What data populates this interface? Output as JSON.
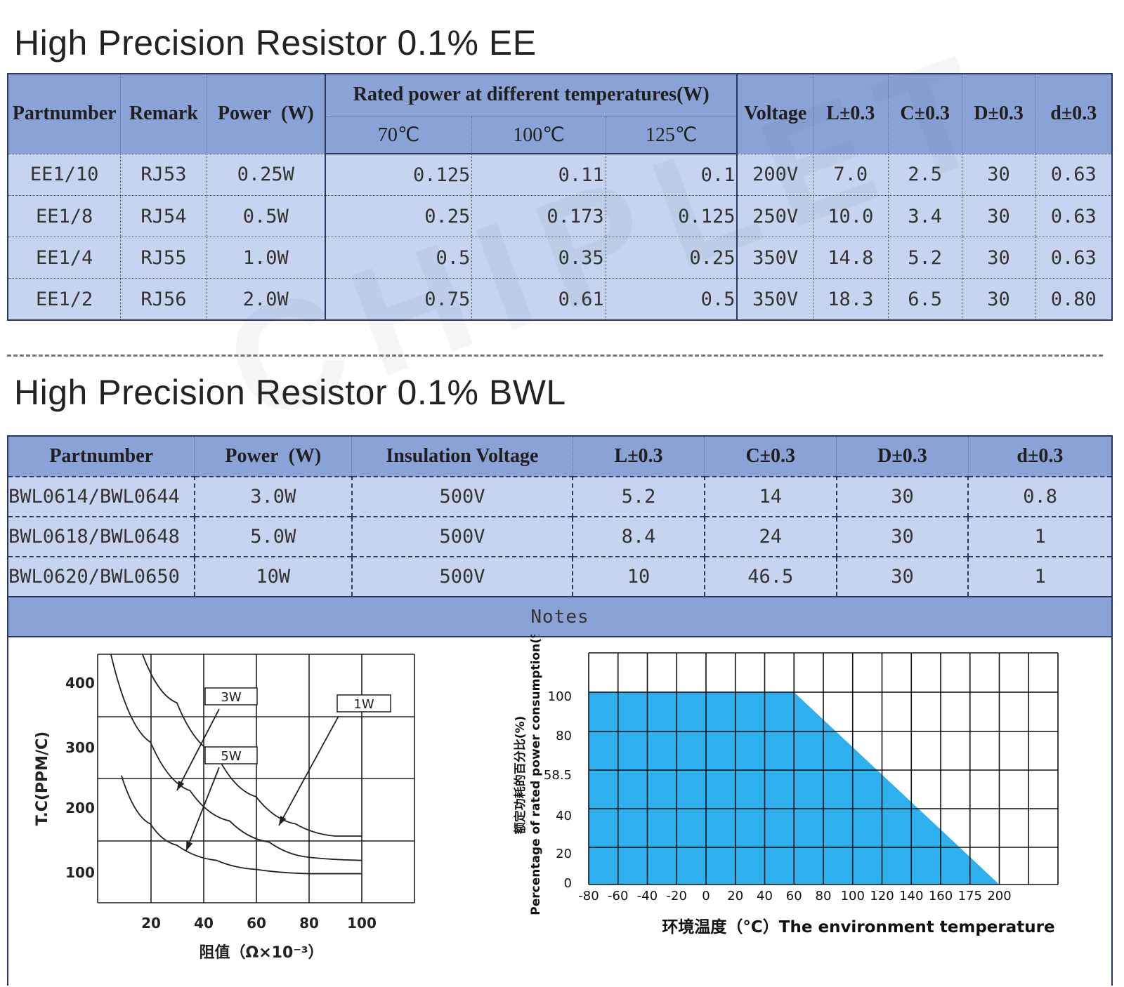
{
  "section1": {
    "title": "High Precision Resistor 0.1% EE",
    "headers": {
      "partnumber": "Partnumber",
      "remark": "Remark",
      "power": "Power  (W)",
      "rated": "Rated power at different temperatures(W)",
      "t70": "70℃",
      "t100": "100℃",
      "t125": "125℃",
      "voltage": "Voltage",
      "L": "L±0.3",
      "C": "C±0.3",
      "D": "D±0.3",
      "d": "d±0.3"
    },
    "rows": [
      {
        "part": "EE1/10",
        "remark": "RJ53",
        "power": "0.25W",
        "p70": "0.125",
        "p100": "0.11",
        "p125": "0.1",
        "voltage": "200V",
        "L": "7.0",
        "C": "2.5",
        "D": "30",
        "d": "0.63"
      },
      {
        "part": "EE1/8",
        "remark": "RJ54",
        "power": "0.5W",
        "p70": "0.25",
        "p100": "0.173",
        "p125": "0.125",
        "voltage": "250V",
        "L": "10.0",
        "C": "3.4",
        "D": "30",
        "d": "0.63"
      },
      {
        "part": "EE1/4",
        "remark": "RJ55",
        "power": "1.0W",
        "p70": "0.5",
        "p100": "0.35",
        "p125": "0.25",
        "voltage": "350V",
        "L": "14.8",
        "C": "5.2",
        "D": "30",
        "d": "0.63"
      },
      {
        "part": "EE1/2",
        "remark": "RJ56",
        "power": "2.0W",
        "p70": "0.75",
        "p100": "0.61",
        "p125": "0.5",
        "voltage": "350V",
        "L": "18.3",
        "C": "6.5",
        "D": "30",
        "d": "0.80"
      }
    ]
  },
  "section2": {
    "title": "High Precision Resistor 0.1% BWL",
    "headers": {
      "partnumber": "Partnumber",
      "power": "Power  (W)",
      "insulation": "Insulation Voltage",
      "L": "L±0.3",
      "C": "C±0.3",
      "D": "D±0.3",
      "d": "d±0.3"
    },
    "rows": [
      {
        "part": "BWL0614/BWL0644",
        "power": "3.0W",
        "voltage": "500V",
        "L": "5.2",
        "C": "14",
        "D": "30",
        "d": "0.8"
      },
      {
        "part": "BWL0618/BWL0648",
        "power": "5.0W",
        "voltage": "500V",
        "L": "8.4",
        "C": "24",
        "D": "30",
        "d": "1"
      },
      {
        "part": "BWL0620/BWL0650",
        "power": "10W",
        "voltage": "500V",
        "L": "10",
        "C": "46.5",
        "D": "30",
        "d": "1"
      }
    ],
    "notes": "Notes"
  },
  "watermark": "CHIPLET",
  "chart_data": [
    {
      "type": "line",
      "xlabel": "阻值（Ω×10⁻³）",
      "ylabel": "T.C(PPM/C)",
      "xticks": [
        "20",
        "40",
        "60",
        "80",
        "100"
      ],
      "yticks": [
        "100",
        "200",
        "300",
        "400"
      ],
      "xlim": [
        0,
        120
      ],
      "ylim": [
        55,
        465
      ],
      "grid": true,
      "series": [
        {
          "name": "1W",
          "x": [
            17,
            30,
            45,
            60,
            75,
            90,
            100
          ],
          "y": [
            465,
            385,
            300,
            230,
            185,
            165,
            165
          ]
        },
        {
          "name": "3W",
          "x": [
            5,
            20,
            35,
            50,
            65,
            80,
            100
          ],
          "y": [
            465,
            320,
            240,
            190,
            155,
            130,
            125
          ]
        },
        {
          "name": "5W",
          "x": [
            9,
            20,
            30,
            45,
            60,
            80,
            100
          ],
          "y": [
            265,
            185,
            150,
            125,
            110,
            103,
            103
          ]
        }
      ]
    },
    {
      "type": "area",
      "xlabel": "环境温度（°C）The environment temperature",
      "ylabel": "Percentage of rated power consumption(%)",
      "ylabel_cn": "额定功耗的百分比(%)",
      "xticks": [
        "-80",
        "-60",
        "-40",
        "-20",
        "0",
        "20",
        "40",
        "60",
        "80",
        "100",
        "120",
        "140",
        "160",
        "175",
        "200"
      ],
      "yticks": [
        "0",
        "20",
        "40",
        "58.5",
        "80",
        "100"
      ],
      "x": [
        -80,
        60,
        200
      ],
      "y": [
        100,
        100,
        0
      ],
      "color": "#2fb0ee",
      "grid": true
    }
  ]
}
